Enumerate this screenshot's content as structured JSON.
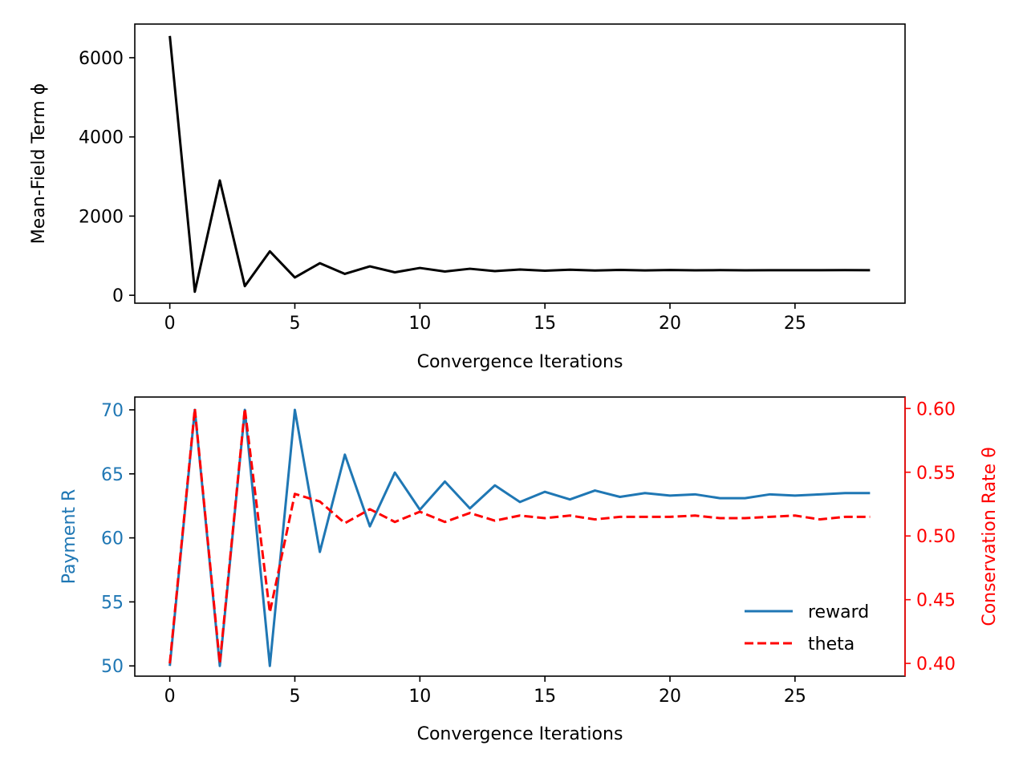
{
  "chart_data": [
    {
      "type": "line",
      "title": "",
      "xlabel": "Convergence Iterations",
      "ylabel": "Mean-Field Term ϕ",
      "xlim": [
        -1.4,
        29.4
      ],
      "ylim": [
        -200,
        6850
      ],
      "xticks": [
        0,
        5,
        10,
        15,
        20,
        25
      ],
      "yticks": [
        0,
        2000,
        4000,
        6000
      ],
      "grid": false,
      "series": [
        {
          "color": "#000000",
          "style": "solid",
          "x": [
            0,
            1,
            2,
            3,
            4,
            5,
            6,
            7,
            8,
            9,
            10,
            11,
            12,
            13,
            14,
            15,
            16,
            17,
            18,
            19,
            20,
            21,
            22,
            23,
            24,
            25,
            26,
            27,
            28
          ],
          "y": [
            6550,
            90,
            2900,
            230,
            1110,
            450,
            810,
            540,
            730,
            580,
            690,
            600,
            670,
            610,
            650,
            620,
            645,
            625,
            640,
            628,
            638,
            630,
            635,
            630,
            634,
            632,
            633,
            635,
            633
          ]
        }
      ]
    },
    {
      "type": "line",
      "title": "",
      "xlabel": "Convergence Iterations",
      "ylabel": "Payment R",
      "y2label": "Conservation Rate θ",
      "xlim": [
        -1.4,
        29.4
      ],
      "ylim": [
        49.2,
        71.0
      ],
      "y2lim": [
        0.39,
        0.609
      ],
      "xticks": [
        0,
        5,
        10,
        15,
        20,
        25
      ],
      "yticks": [
        50,
        55,
        60,
        65,
        70
      ],
      "y2ticks": [
        0.4,
        0.45,
        0.5,
        0.55,
        0.6
      ],
      "y_color": "#1f77b4",
      "y2_color": "#ff0000",
      "grid": false,
      "legend_position": "lower-right",
      "series": [
        {
          "name": "reward",
          "axis": "left",
          "color": "#1f77b4",
          "style": "solid",
          "x": [
            0,
            1,
            2,
            3,
            4,
            5,
            6,
            7,
            8,
            9,
            10,
            11,
            12,
            13,
            14,
            15,
            16,
            17,
            18,
            19,
            20,
            21,
            22,
            23,
            24,
            25,
            26,
            27,
            28
          ],
          "y": [
            50,
            70,
            50,
            70,
            50,
            70,
            58.9,
            66.5,
            60.9,
            65.1,
            62.2,
            64.4,
            62.3,
            64.1,
            62.8,
            63.6,
            63.0,
            63.7,
            63.2,
            63.5,
            63.3,
            63.4,
            63.1,
            63.1,
            63.4,
            63.3,
            63.4,
            63.5,
            63.5
          ]
        },
        {
          "name": "theta",
          "axis": "right",
          "color": "#ff0000",
          "style": "dashed",
          "x": [
            0,
            1,
            2,
            3,
            4,
            5,
            6,
            7,
            8,
            9,
            10,
            11,
            12,
            13,
            14,
            15,
            16,
            17,
            18,
            19,
            20,
            21,
            22,
            23,
            24,
            25,
            26,
            27,
            28
          ],
          "y": [
            0.4,
            0.6,
            0.4,
            0.6,
            0.44,
            0.533,
            0.527,
            0.51,
            0.521,
            0.511,
            0.519,
            0.511,
            0.518,
            0.512,
            0.516,
            0.514,
            0.516,
            0.513,
            0.515,
            0.515,
            0.515,
            0.516,
            0.514,
            0.514,
            0.515,
            0.516,
            0.513,
            0.515,
            0.515
          ]
        }
      ]
    }
  ]
}
